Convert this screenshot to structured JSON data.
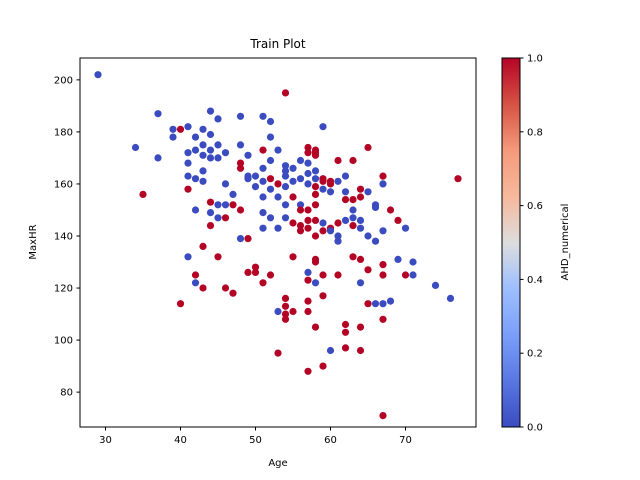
{
  "chart_data": {
    "type": "scatter",
    "title": "Train Plot",
    "xlabel": "Age",
    "ylabel": "MaxHR",
    "xlim": [
      26.6,
      79.4
    ],
    "ylim": [
      66.6,
      208.4
    ],
    "xticks": [
      30,
      40,
      50,
      60,
      70
    ],
    "yticks": [
      80,
      100,
      120,
      140,
      160,
      180,
      200
    ],
    "grid": false,
    "colorbar": {
      "label": "AHD_numerical",
      "colormap": "coolwarm",
      "range": [
        0.0,
        1.0
      ],
      "ticks": [
        "0.0",
        "0.2",
        "0.4",
        "0.6",
        "0.8",
        "1.0"
      ]
    },
    "colors": {
      "low": "#3b4cc0",
      "high": "#b40426"
    },
    "points": [
      [
        29,
        202,
        0
      ],
      [
        34,
        174,
        0
      ],
      [
        35,
        156,
        1
      ],
      [
        37,
        187,
        0
      ],
      [
        37,
        170,
        0
      ],
      [
        39,
        178,
        0
      ],
      [
        39,
        181,
        0
      ],
      [
        40,
        181,
        1
      ],
      [
        40,
        114,
        1
      ],
      [
        41,
        182,
        0
      ],
      [
        41,
        172,
        0
      ],
      [
        41,
        168,
        0
      ],
      [
        41,
        163,
        0
      ],
      [
        41,
        158,
        1
      ],
      [
        41,
        132,
        0
      ],
      [
        42,
        178,
        0
      ],
      [
        42,
        173,
        0
      ],
      [
        42,
        162,
        0
      ],
      [
        42,
        150,
        0
      ],
      [
        42,
        125,
        1
      ],
      [
        42,
        122,
        0
      ],
      [
        43,
        181,
        0
      ],
      [
        43,
        175,
        0
      ],
      [
        43,
        171,
        0
      ],
      [
        43,
        165,
        0
      ],
      [
        43,
        161,
        0
      ],
      [
        43,
        136,
        1
      ],
      [
        43,
        120,
        1
      ],
      [
        44,
        188,
        0
      ],
      [
        44,
        179,
        0
      ],
      [
        44,
        173,
        0
      ],
      [
        44,
        170,
        0
      ],
      [
        44,
        153,
        1
      ],
      [
        44,
        149,
        0
      ],
      [
        44,
        144,
        1
      ],
      [
        45,
        185,
        0
      ],
      [
        45,
        175,
        0
      ],
      [
        45,
        170,
        0
      ],
      [
        45,
        152,
        0
      ],
      [
        45,
        147,
        0
      ],
      [
        45,
        132,
        1
      ],
      [
        46,
        172,
        0
      ],
      [
        46,
        160,
        0
      ],
      [
        46,
        152,
        0
      ],
      [
        46,
        147,
        1
      ],
      [
        46,
        120,
        1
      ],
      [
        47,
        156,
        0
      ],
      [
        47,
        152,
        1
      ],
      [
        47,
        118,
        1
      ],
      [
        48,
        186,
        0
      ],
      [
        48,
        175,
        0
      ],
      [
        48,
        168,
        1
      ],
      [
        48,
        166,
        1
      ],
      [
        48,
        150,
        1
      ],
      [
        48,
        139,
        0
      ],
      [
        49,
        171,
        0
      ],
      [
        49,
        163,
        0
      ],
      [
        49,
        162,
        0
      ],
      [
        49,
        139,
        1
      ],
      [
        49,
        126,
        1
      ],
      [
        50,
        163,
        0
      ],
      [
        50,
        159,
        0
      ],
      [
        50,
        128,
        1
      ],
      [
        50,
        126,
        1
      ],
      [
        51,
        186,
        0
      ],
      [
        51,
        173,
        1
      ],
      [
        51,
        166,
        0
      ],
      [
        51,
        161,
        0
      ],
      [
        51,
        155,
        0
      ],
      [
        51,
        149,
        0
      ],
      [
        51,
        143,
        0
      ],
      [
        51,
        122,
        1
      ],
      [
        52,
        184,
        0
      ],
      [
        52,
        178,
        0
      ],
      [
        52,
        169,
        0
      ],
      [
        52,
        162,
        1
      ],
      [
        52,
        158,
        0
      ],
      [
        52,
        147,
        0
      ],
      [
        52,
        125,
        1
      ],
      [
        53,
        173,
        0
      ],
      [
        53,
        160,
        1
      ],
      [
        53,
        155,
        0
      ],
      [
        53,
        143,
        0
      ],
      [
        53,
        111,
        0
      ],
      [
        53,
        95,
        1
      ],
      [
        54,
        195,
        1
      ],
      [
        54,
        167,
        0
      ],
      [
        54,
        165,
        0
      ],
      [
        54,
        163,
        0
      ],
      [
        54,
        159,
        0
      ],
      [
        54,
        152,
        0
      ],
      [
        54,
        147,
        0
      ],
      [
        54,
        116,
        1
      ],
      [
        54,
        113,
        1
      ],
      [
        54,
        110,
        1
      ],
      [
        54,
        108,
        1
      ],
      [
        55,
        166,
        0
      ],
      [
        55,
        161,
        0
      ],
      [
        55,
        155,
        1
      ],
      [
        55,
        145,
        1
      ],
      [
        55,
        132,
        1
      ],
      [
        55,
        111,
        1
      ],
      [
        56,
        169,
        0
      ],
      [
        56,
        162,
        0
      ],
      [
        56,
        152,
        0
      ],
      [
        56,
        150,
        1
      ],
      [
        56,
        144,
        1
      ],
      [
        56,
        142,
        1
      ],
      [
        57,
        174,
        1
      ],
      [
        57,
        172,
        1
      ],
      [
        57,
        168,
        0
      ],
      [
        57,
        164,
        0
      ],
      [
        57,
        160,
        0
      ],
      [
        57,
        150,
        1
      ],
      [
        57,
        146,
        1
      ],
      [
        57,
        143,
        1
      ],
      [
        57,
        126,
        0
      ],
      [
        57,
        123,
        1
      ],
      [
        57,
        115,
        1
      ],
      [
        57,
        111,
        1
      ],
      [
        57,
        88,
        1
      ],
      [
        58,
        173,
        1
      ],
      [
        58,
        172,
        1
      ],
      [
        58,
        171,
        1
      ],
      [
        58,
        165,
        0
      ],
      [
        58,
        162,
        0
      ],
      [
        58,
        159,
        1
      ],
      [
        58,
        156,
        1
      ],
      [
        58,
        152,
        1
      ],
      [
        58,
        146,
        1
      ],
      [
        58,
        140,
        1
      ],
      [
        58,
        131,
        1
      ],
      [
        58,
        130,
        1
      ],
      [
        58,
        122,
        0
      ],
      [
        58,
        105,
        1
      ],
      [
        59,
        182,
        0
      ],
      [
        59,
        162,
        1
      ],
      [
        59,
        161,
        1
      ],
      [
        59,
        158,
        0
      ],
      [
        59,
        145,
        0
      ],
      [
        59,
        142,
        1
      ],
      [
        59,
        125,
        1
      ],
      [
        59,
        117,
        1
      ],
      [
        59,
        90,
        1
      ],
      [
        60,
        161,
        1
      ],
      [
        60,
        160,
        1
      ],
      [
        60,
        157,
        0
      ],
      [
        60,
        143,
        1
      ],
      [
        60,
        142,
        0
      ],
      [
        60,
        96,
        0
      ],
      [
        61,
        169,
        1
      ],
      [
        61,
        161,
        0
      ],
      [
        61,
        145,
        1
      ],
      [
        61,
        138,
        0
      ],
      [
        61,
        140,
        0
      ],
      [
        61,
        125,
        1
      ],
      [
        62,
        163,
        0
      ],
      [
        62,
        157,
        0
      ],
      [
        62,
        154,
        1
      ],
      [
        62,
        146,
        0
      ],
      [
        62,
        106,
        1
      ],
      [
        62,
        103,
        1
      ],
      [
        62,
        97,
        1
      ],
      [
        63,
        169,
        1
      ],
      [
        63,
        154,
        1
      ],
      [
        63,
        150,
        0
      ],
      [
        63,
        147,
        0
      ],
      [
        63,
        144,
        1
      ],
      [
        63,
        132,
        1
      ],
      [
        64,
        158,
        1
      ],
      [
        64,
        155,
        1
      ],
      [
        64,
        146,
        0
      ],
      [
        64,
        143,
        0
      ],
      [
        64,
        131,
        1
      ],
      [
        64,
        122,
        0
      ],
      [
        64,
        105,
        1
      ],
      [
        64,
        96,
        1
      ],
      [
        65,
        174,
        1
      ],
      [
        65,
        157,
        0
      ],
      [
        65,
        140,
        0
      ],
      [
        65,
        127,
        1
      ],
      [
        65,
        114,
        1
      ],
      [
        66,
        152,
        0
      ],
      [
        66,
        151,
        0
      ],
      [
        66,
        138,
        0
      ],
      [
        66,
        114,
        0
      ],
      [
        67,
        163,
        1
      ],
      [
        67,
        160,
        0
      ],
      [
        67,
        142,
        0
      ],
      [
        67,
        129,
        1
      ],
      [
        67,
        125,
        1
      ],
      [
        67,
        114,
        0
      ],
      [
        67,
        108,
        1
      ],
      [
        67,
        71,
        1
      ],
      [
        68,
        150,
        1
      ],
      [
        68,
        115,
        0
      ],
      [
        69,
        146,
        1
      ],
      [
        69,
        131,
        0
      ],
      [
        70,
        143,
        0
      ],
      [
        70,
        125,
        1
      ],
      [
        71,
        130,
        0
      ],
      [
        71,
        125,
        0
      ],
      [
        74,
        121,
        0
      ],
      [
        76,
        116,
        0
      ],
      [
        77,
        162,
        1
      ]
    ]
  }
}
